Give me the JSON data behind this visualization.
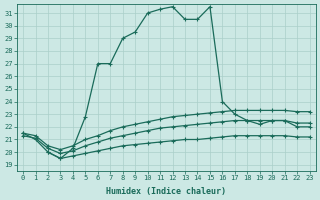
{
  "xlabel": "Humidex (Indice chaleur)",
  "bg_color": "#cce8e4",
  "grid_color": "#aacfc9",
  "line_color": "#1a6b5a",
  "xlim": [
    -0.5,
    23.5
  ],
  "ylim": [
    18.5,
    31.7
  ],
  "yticks": [
    19,
    20,
    21,
    22,
    23,
    24,
    25,
    26,
    27,
    28,
    29,
    30,
    31
  ],
  "xticks": [
    0,
    1,
    2,
    3,
    4,
    5,
    6,
    7,
    8,
    9,
    10,
    11,
    12,
    13,
    14,
    15,
    16,
    17,
    18,
    19,
    20,
    21,
    22,
    23
  ],
  "line1_x": [
    0,
    1,
    2,
    3,
    4,
    5,
    6,
    7,
    8,
    9,
    10,
    11,
    12,
    13,
    14,
    15,
    16,
    17,
    18,
    19,
    20,
    21,
    22,
    23
  ],
  "line1_y": [
    21.5,
    21.0,
    20.0,
    19.5,
    20.3,
    22.8,
    27.0,
    27.0,
    29.0,
    29.5,
    31.0,
    31.3,
    31.5,
    30.5,
    30.5,
    31.5,
    24.0,
    23.0,
    22.5,
    22.2,
    22.5,
    22.5,
    22.0,
    22.0
  ],
  "line2_x": [
    0,
    1,
    2,
    3,
    4,
    5,
    6,
    7,
    8,
    9,
    10,
    11,
    12,
    13,
    14,
    15,
    16,
    17,
    18,
    19,
    20,
    21,
    22,
    23
  ],
  "line2_y": [
    21.5,
    21.3,
    20.5,
    20.2,
    20.5,
    21.0,
    21.3,
    21.7,
    22.0,
    22.2,
    22.4,
    22.6,
    22.8,
    22.9,
    23.0,
    23.1,
    23.2,
    23.3,
    23.3,
    23.3,
    23.3,
    23.3,
    23.2,
    23.2
  ],
  "line3_x": [
    0,
    1,
    2,
    3,
    4,
    5,
    6,
    7,
    8,
    9,
    10,
    11,
    12,
    13,
    14,
    15,
    16,
    17,
    18,
    19,
    20,
    21,
    22,
    23
  ],
  "line3_y": [
    21.3,
    21.1,
    20.3,
    19.9,
    20.1,
    20.5,
    20.8,
    21.1,
    21.3,
    21.5,
    21.7,
    21.9,
    22.0,
    22.1,
    22.2,
    22.3,
    22.4,
    22.5,
    22.5,
    22.5,
    22.5,
    22.5,
    22.3,
    22.3
  ],
  "line4_x": [
    2,
    3,
    4,
    5,
    6,
    7,
    8,
    9,
    10,
    11,
    12,
    13,
    14,
    15,
    16,
    17,
    18,
    19,
    20,
    21,
    22,
    23
  ],
  "line4_y": [
    20.0,
    19.5,
    19.7,
    19.9,
    20.1,
    20.3,
    20.5,
    20.6,
    20.7,
    20.8,
    20.9,
    21.0,
    21.0,
    21.1,
    21.2,
    21.3,
    21.3,
    21.3,
    21.3,
    21.3,
    21.2,
    21.2
  ]
}
